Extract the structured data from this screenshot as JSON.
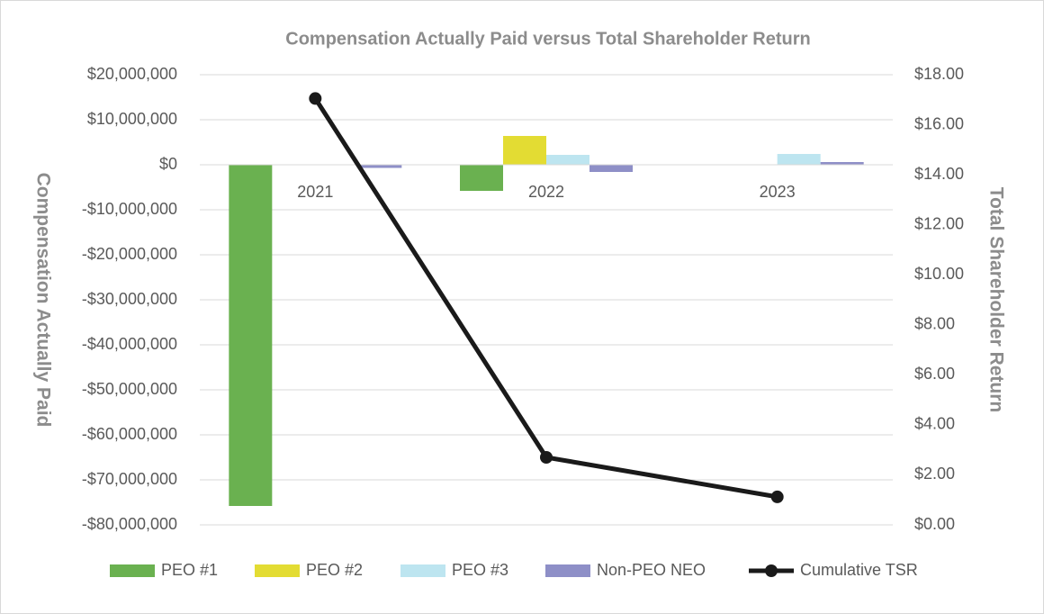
{
  "chart_data": {
    "type": "bar",
    "title": "Compensation Actually Paid versus Total Shareholder Return",
    "y_label": "Compensation Actually Paid",
    "y2_label": "Total Shareholder Return",
    "categories": [
      "2021",
      "2022",
      "2023"
    ],
    "series": [
      {
        "name": "PEO #1",
        "color": "#6ab150",
        "values": [
          -75800000,
          -5800000,
          null
        ]
      },
      {
        "name": "PEO #2",
        "color": "#e3dc33",
        "values": [
          null,
          6400000,
          null
        ]
      },
      {
        "name": "PEO #3",
        "color": "#bde5f0",
        "values": [
          null,
          2200000,
          2400000
        ]
      },
      {
        "name": "Non-PEO NEO",
        "color": "#8e8fc7",
        "values": [
          -700000,
          -1600000,
          600000
        ]
      },
      {
        "name": "Cumulative TSR",
        "color": "#1a1a1a",
        "type": "line",
        "axis": "y2",
        "values": [
          17.05,
          2.7,
          1.12
        ]
      }
    ],
    "ylim": [
      -80000000,
      20000000
    ],
    "yticks": [
      {
        "value": -80000000,
        "label": "-$80,000,000"
      },
      {
        "value": -70000000,
        "label": "-$70,000,000"
      },
      {
        "value": -60000000,
        "label": "-$60,000,000"
      },
      {
        "value": -50000000,
        "label": "-$50,000,000"
      },
      {
        "value": -40000000,
        "label": "-$40,000,000"
      },
      {
        "value": -30000000,
        "label": "-$30,000,000"
      },
      {
        "value": -20000000,
        "label": "-$20,000,000"
      },
      {
        "value": -10000000,
        "label": "-$10,000,000"
      },
      {
        "value": 0,
        "label": "$0"
      },
      {
        "value": 10000000,
        "label": "$10,000,000"
      },
      {
        "value": 20000000,
        "label": "$20,000,000"
      }
    ],
    "y2lim": [
      0,
      18
    ],
    "y2ticks": [
      {
        "value": 0,
        "label": "$0.00"
      },
      {
        "value": 2,
        "label": "$2.00"
      },
      {
        "value": 4,
        "label": "$4.00"
      },
      {
        "value": 6,
        "label": "$6.00"
      },
      {
        "value": 8,
        "label": "$8.00"
      },
      {
        "value": 10,
        "label": "$10.00"
      },
      {
        "value": 12,
        "label": "$12.00"
      },
      {
        "value": 14,
        "label": "$14.00"
      },
      {
        "value": 16,
        "label": "$16.00"
      },
      {
        "value": 18,
        "label": "$18.00"
      }
    ],
    "grid": true,
    "legend": "bottom"
  }
}
